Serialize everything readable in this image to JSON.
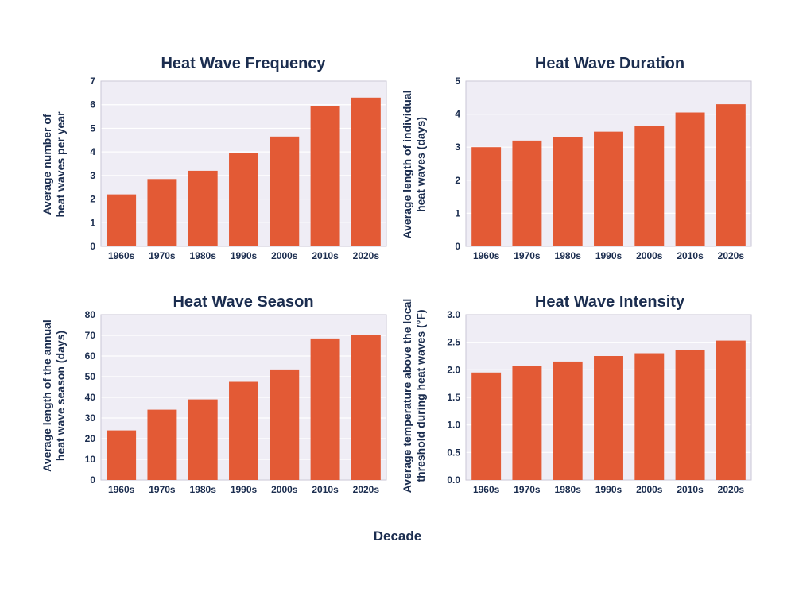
{
  "colors": {
    "bar": "#e35a35",
    "plot_bg": "#efedf5",
    "grid": "#ffffff",
    "text": "#1b2d4f",
    "axis": "#c9c6d6"
  },
  "shared_xlabel": "Decade",
  "chart_data": [
    {
      "type": "bar",
      "title": "Heat Wave Frequency",
      "ylabel": [
        "Average number of",
        "heat waves per year"
      ],
      "categories": [
        "1960s",
        "1970s",
        "1980s",
        "1990s",
        "2000s",
        "2010s",
        "2020s"
      ],
      "values": [
        2.2,
        2.85,
        3.2,
        3.95,
        4.65,
        5.95,
        6.3
      ],
      "ylim": [
        0,
        7
      ],
      "yticks": [
        "0",
        "1",
        "2",
        "3",
        "4",
        "5",
        "6",
        "7"
      ],
      "grid": true
    },
    {
      "type": "bar",
      "title": "Heat Wave Duration",
      "ylabel": [
        "Average length of individual",
        "heat waves (days)"
      ],
      "categories": [
        "1960s",
        "1970s",
        "1980s",
        "1990s",
        "2000s",
        "2010s",
        "2020s"
      ],
      "values": [
        3.0,
        3.2,
        3.3,
        3.47,
        3.65,
        4.05,
        4.3
      ],
      "ylim": [
        0,
        5
      ],
      "yticks": [
        "0",
        "1",
        "2",
        "3",
        "4",
        "5"
      ],
      "grid": true
    },
    {
      "type": "bar",
      "title": "Heat Wave Season",
      "ylabel": [
        "Average length of the annual",
        "heat wave season (days)"
      ],
      "categories": [
        "1960s",
        "1970s",
        "1980s",
        "1990s",
        "2000s",
        "2010s",
        "2020s"
      ],
      "values": [
        24,
        34,
        39,
        47.5,
        53.5,
        68.5,
        70
      ],
      "ylim": [
        0,
        80
      ],
      "yticks": [
        "0",
        "10",
        "20",
        "30",
        "40",
        "50",
        "60",
        "70",
        "80"
      ],
      "grid": true
    },
    {
      "type": "bar",
      "title": "Heat Wave Intensity",
      "ylabel": [
        "Average temperature above the local",
        "threshold during heat waves (°F)"
      ],
      "categories": [
        "1960s",
        "1970s",
        "1980s",
        "1990s",
        "2000s",
        "2010s",
        "2020s"
      ],
      "values": [
        1.95,
        2.07,
        2.15,
        2.25,
        2.3,
        2.36,
        2.53
      ],
      "ylim": [
        0,
        3
      ],
      "yticks": [
        "0.0",
        "0.5",
        "1.0",
        "1.5",
        "2.0",
        "2.5",
        "3.0"
      ],
      "grid": true
    }
  ]
}
